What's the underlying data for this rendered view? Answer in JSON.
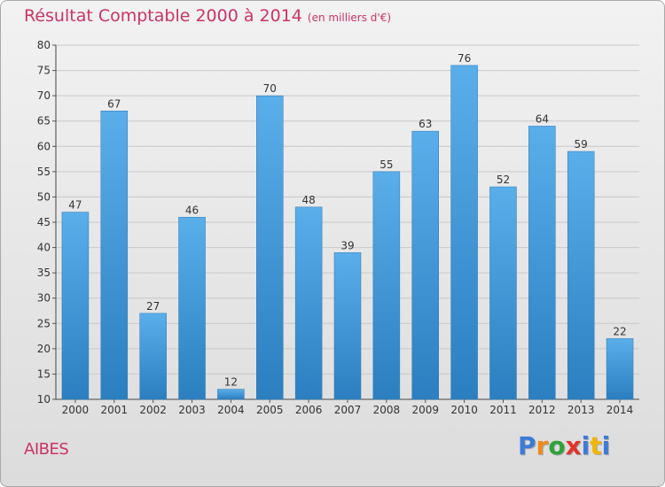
{
  "title": "Résultat Comptable 2000 à 2014",
  "subtitle": "(en milliers d'€)",
  "commune": "AIBES",
  "logo": {
    "letters": [
      "P",
      "r",
      "o",
      "x",
      "i",
      "t",
      "i"
    ]
  },
  "colors": {
    "title": "#cc3366",
    "bar": "#3f97dc",
    "bar_light": "#5aaeea",
    "bar_dark": "#2b7fc0"
  },
  "chart_data": {
    "type": "bar",
    "title": "Résultat Comptable 2000 à 2014",
    "xlabel": "",
    "ylabel": "",
    "categories": [
      "2000",
      "2001",
      "2002",
      "2003",
      "2004",
      "2005",
      "2006",
      "2007",
      "2008",
      "2009",
      "2010",
      "2011",
      "2012",
      "2013",
      "2014"
    ],
    "values": [
      47,
      67,
      27,
      46,
      12,
      70,
      48,
      39,
      55,
      63,
      76,
      52,
      64,
      59,
      22
    ],
    "ylim": [
      10,
      80
    ],
    "yticks": [
      10,
      15,
      20,
      25,
      30,
      35,
      40,
      45,
      50,
      55,
      60,
      65,
      70,
      75,
      80
    ],
    "grid": true,
    "data_labels": true
  }
}
